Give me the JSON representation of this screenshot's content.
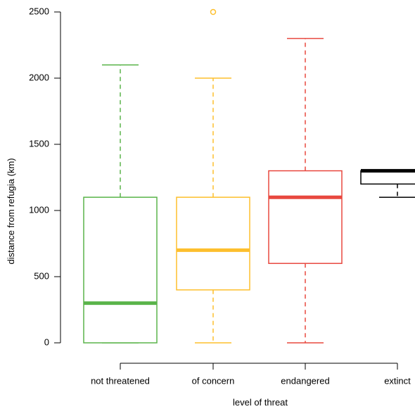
{
  "chart_data": {
    "type": "box",
    "title": "",
    "xlabel": "level of threat",
    "ylabel": "distance from refugia (km)",
    "ylim": [
      0,
      2500
    ],
    "y_ticks": [
      0,
      500,
      1000,
      1500,
      2000,
      2500
    ],
    "y_tick_labels": [
      "0",
      "500",
      "1000",
      "1500",
      "2000",
      "2500"
    ],
    "categories": [
      "not threatened",
      "of concern",
      "endangered",
      "extinct"
    ],
    "grid": false,
    "legend": "none",
    "series": [
      {
        "category": "not threatened",
        "color": "#5ab44a",
        "whisker_low": 0,
        "q1": 0,
        "median": 300,
        "q3": 1100,
        "whisker_high": 2100,
        "outliers": []
      },
      {
        "category": "of concern",
        "color": "#fdbf2d",
        "whisker_low": 0,
        "q1": 400,
        "median": 700,
        "q3": 1100,
        "whisker_high": 2000,
        "outliers": [
          2500
        ]
      },
      {
        "category": "endangered",
        "color": "#e8483f",
        "whisker_low": 0,
        "q1": 600,
        "median": 1100,
        "q3": 1300,
        "whisker_high": 2300,
        "outliers": []
      },
      {
        "category": "extinct",
        "color": "#000000",
        "whisker_low": 1100,
        "q1": 1200,
        "median": 1300,
        "q3": 1300,
        "whisker_high": 1300,
        "outliers": []
      }
    ]
  }
}
